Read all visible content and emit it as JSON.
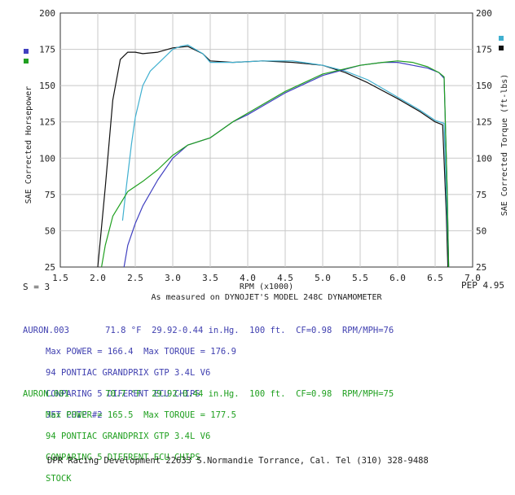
{
  "chart_data": {
    "type": "line",
    "xlabel": "RPM (x1000)",
    "ylabel_left": "SAE Corrected Horsepower",
    "ylabel_right": "SAE Corrected Torque (ft-lbs)",
    "xlim": [
      1.5,
      7.0
    ],
    "ylim": [
      25,
      200
    ],
    "x_ticks": [
      "1.5",
      "2.0",
      "2.5",
      "3.0",
      "3.5",
      "4.0",
      "4.5",
      "5.0",
      "5.5",
      "6.0",
      "6.5",
      "7.0"
    ],
    "y_ticks": [
      "25",
      "50",
      "75",
      "100",
      "125",
      "150",
      "175",
      "200"
    ],
    "smoothing_label": "S = 3",
    "pep_label": "PEP 4.95",
    "caption": "As measured on DYNOJET'S MODEL 248C DYNAMOMETER",
    "legend": [
      {
        "color": "#4040c0"
      },
      {
        "color": "#20a020"
      },
      {
        "color": "#40b0d0"
      },
      {
        "color": "#111111"
      }
    ],
    "series": [
      {
        "color": "#111111",
        "x": [
          2.0,
          2.1,
          2.2,
          2.3,
          2.4,
          2.5,
          2.6,
          2.8,
          3.0,
          3.2,
          3.4,
          3.5,
          3.8,
          4.2,
          4.6,
          5.0,
          5.3,
          5.6,
          6.0,
          6.3,
          6.5,
          6.6,
          6.65,
          6.67
        ],
        "y": [
          25,
          80,
          140,
          168,
          173,
          173,
          172,
          173,
          176,
          177,
          172,
          167,
          166,
          167,
          166,
          164,
          159,
          152,
          141,
          132,
          125,
          123,
          60,
          25
        ]
      },
      {
        "color": "#40b0d0",
        "x": [
          2.33,
          2.38,
          2.45,
          2.5,
          2.6,
          2.7,
          2.8,
          3.0,
          3.1,
          3.2,
          3.4,
          3.5,
          3.8,
          4.2,
          4.6,
          5.0,
          5.3,
          5.6,
          6.0,
          6.3,
          6.5,
          6.62,
          6.66,
          6.68
        ],
        "y": [
          57,
          80,
          110,
          128,
          150,
          160,
          165,
          175,
          177,
          178,
          172,
          166,
          166,
          167,
          167,
          164,
          160,
          154,
          142,
          133,
          126,
          124,
          60,
          25
        ]
      },
      {
        "color": "#4040c0",
        "x": [
          2.35,
          2.4,
          2.5,
          2.6,
          2.8,
          3.0,
          3.2,
          3.5,
          3.8,
          4.0,
          4.5,
          5.0,
          5.5,
          5.8,
          6.0,
          6.2,
          6.4,
          6.55,
          6.62,
          6.66,
          6.68
        ],
        "y": [
          25,
          40,
          55,
          67,
          85,
          100,
          109,
          114,
          125,
          130,
          145,
          157,
          164,
          166,
          166,
          164,
          162,
          159,
          155,
          80,
          25
        ]
      },
      {
        "color": "#20a020",
        "x": [
          2.05,
          2.1,
          2.2,
          2.4,
          2.6,
          2.8,
          3.0,
          3.2,
          3.5,
          3.8,
          4.0,
          4.5,
          5.0,
          5.5,
          5.8,
          6.0,
          6.2,
          6.4,
          6.55,
          6.62,
          6.66,
          6.68
        ],
        "y": [
          25,
          40,
          60,
          77,
          84,
          92,
          102,
          109,
          114,
          125,
          131,
          146,
          158,
          164,
          166,
          167,
          166,
          163,
          159,
          156,
          80,
          25
        ]
      }
    ]
  },
  "run_blue": {
    "id": "AURON.003",
    "conditions": "71.8 °F  29.92-0.44 in.Hg.  100 ft.  CF=0.98  RPM/MPH=76",
    "peak": "Max POWER = 166.4  Max TORQUE = 176.9",
    "vehicle": "94 PONTIAC GRANDPRIX GTP 3.4L V6",
    "note": "CONPARING 5 DIFERENT ECU CHIPS",
    "chip": "JET CHIP #2"
  },
  "run_green": {
    "id": "AURON.001",
    "conditions": "70.7 °F  29.92-0.44 in.Hg.  100 ft.  CF=0.98  RPM/MPH=75",
    "peak": "Max POWER = 165.5  Max TORQUE = 177.5",
    "vehicle": "94 PONTIAC GRANDPRIX GTP 3.4L V6",
    "note": "CONPARING 5 DIFERENT ECU CHIPS",
    "chip": "STOCK"
  },
  "footer": "DPR Racing Development 22633 S.Normandie Torrance, Cal. Tel (310) 328-9488"
}
